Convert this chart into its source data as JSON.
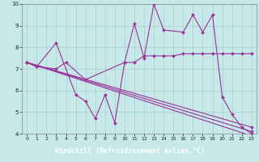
{
  "xlabel": "Windchill (Refroidissement éolien,°C)",
  "bg_color": "#c6e8e8",
  "label_bg_color": "#7b5fa0",
  "label_text_color": "#ffffff",
  "line_color": "#993399",
  "grid_color": "#a8cccc",
  "xlim": [
    -0.5,
    23.5
  ],
  "ylim": [
    4,
    10
  ],
  "xticks": [
    0,
    1,
    2,
    3,
    4,
    5,
    6,
    7,
    8,
    9,
    10,
    11,
    12,
    13,
    14,
    15,
    16,
    17,
    18,
    19,
    20,
    21,
    22,
    23
  ],
  "yticks": [
    4,
    5,
    6,
    7,
    8,
    9,
    10
  ],
  "lines": [
    {
      "x": [
        0,
        1,
        3,
        5,
        6,
        7,
        8,
        9,
        10,
        11,
        12,
        13,
        14,
        16,
        17,
        18,
        19,
        20,
        21,
        22,
        23
      ],
      "y": [
        7.3,
        7.1,
        8.2,
        5.8,
        5.5,
        4.7,
        5.8,
        4.5,
        7.3,
        9.1,
        7.5,
        10.0,
        8.8,
        8.7,
        9.5,
        8.7,
        9.5,
        5.7,
        4.9,
        4.3,
        4.0
      ]
    },
    {
      "x": [
        0,
        1,
        3,
        4,
        6,
        10,
        11,
        12,
        13,
        14,
        15,
        16,
        17,
        18,
        19,
        20,
        21,
        22,
        23
      ],
      "y": [
        7.3,
        7.1,
        7.0,
        7.3,
        6.5,
        7.3,
        7.3,
        7.6,
        7.6,
        7.6,
        7.6,
        7.7,
        7.7,
        7.7,
        7.7,
        7.7,
        7.7,
        7.7,
        7.7
      ]
    },
    {
      "x": [
        0,
        23
      ],
      "y": [
        7.3,
        4.1
      ]
    },
    {
      "x": [
        0,
        23
      ],
      "y": [
        7.3,
        3.9
      ]
    },
    {
      "x": [
        0,
        23
      ],
      "y": [
        7.3,
        4.3
      ]
    }
  ]
}
